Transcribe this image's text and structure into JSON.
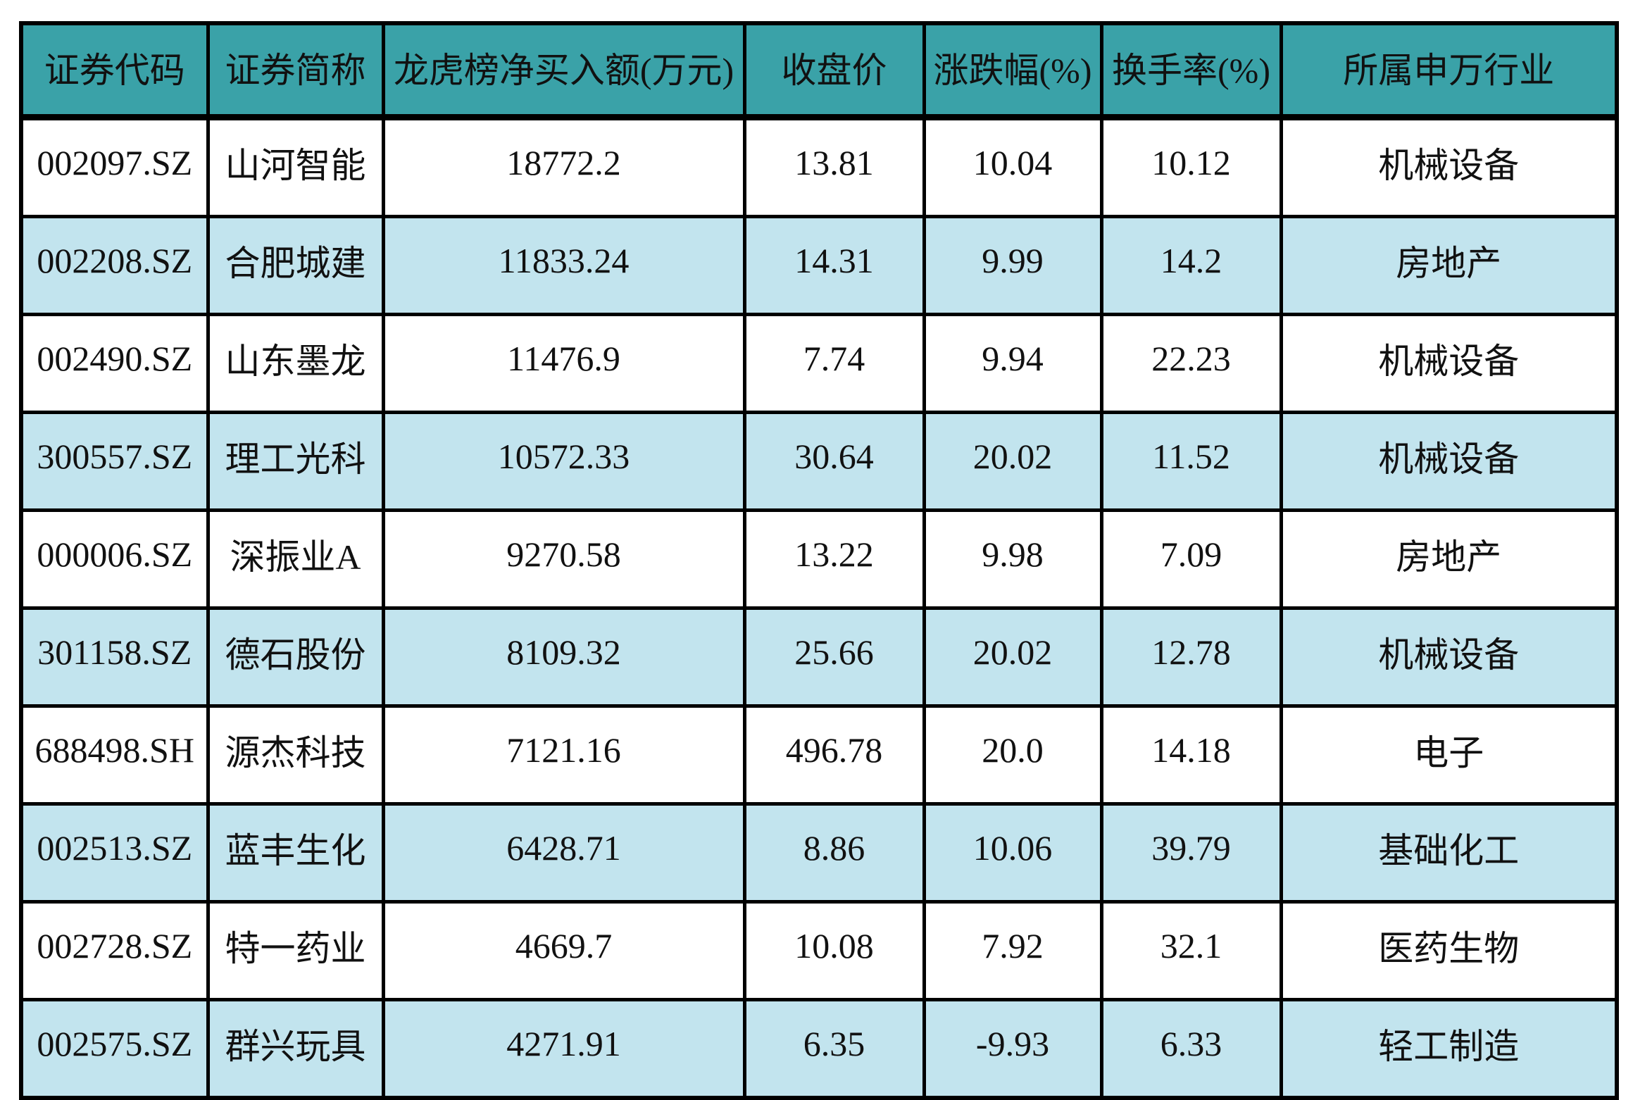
{
  "table": {
    "columns": [
      {
        "label": "证券代码",
        "field": "code"
      },
      {
        "label": "证券简称",
        "field": "name"
      },
      {
        "label": "龙虎榜净买入额(万元)",
        "field": "net_buy"
      },
      {
        "label": "收盘价",
        "field": "close"
      },
      {
        "label": "涨跌幅(%)",
        "field": "change_pct"
      },
      {
        "label": "换手率(%)",
        "field": "turnover_pct"
      },
      {
        "label": "所属申万行业",
        "field": "industry"
      }
    ],
    "rows": [
      {
        "code": "002097.SZ",
        "name": "山河智能",
        "net_buy": "18772.2",
        "close": "13.81",
        "change_pct": "10.04",
        "turnover_pct": "10.12",
        "industry": "机械设备"
      },
      {
        "code": "002208.SZ",
        "name": "合肥城建",
        "net_buy": "11833.24",
        "close": "14.31",
        "change_pct": "9.99",
        "turnover_pct": "14.2",
        "industry": "房地产"
      },
      {
        "code": "002490.SZ",
        "name": "山东墨龙",
        "net_buy": "11476.9",
        "close": "7.74",
        "change_pct": "9.94",
        "turnover_pct": "22.23",
        "industry": "机械设备"
      },
      {
        "code": "300557.SZ",
        "name": "理工光科",
        "net_buy": "10572.33",
        "close": "30.64",
        "change_pct": "20.02",
        "turnover_pct": "11.52",
        "industry": "机械设备"
      },
      {
        "code": "000006.SZ",
        "name": "深振业A",
        "net_buy": "9270.58",
        "close": "13.22",
        "change_pct": "9.98",
        "turnover_pct": "7.09",
        "industry": "房地产"
      },
      {
        "code": "301158.SZ",
        "name": "德石股份",
        "net_buy": "8109.32",
        "close": "25.66",
        "change_pct": "20.02",
        "turnover_pct": "12.78",
        "industry": "机械设备"
      },
      {
        "code": "688498.SH",
        "name": "源杰科技",
        "net_buy": "7121.16",
        "close": "496.78",
        "change_pct": "20.0",
        "turnover_pct": "14.18",
        "industry": "电子"
      },
      {
        "code": "002513.SZ",
        "name": "蓝丰生化",
        "net_buy": "6428.71",
        "close": "8.86",
        "change_pct": "10.06",
        "turnover_pct": "39.79",
        "industry": "基础化工"
      },
      {
        "code": "002728.SZ",
        "name": "特一药业",
        "net_buy": "4669.7",
        "close": "10.08",
        "change_pct": "7.92",
        "turnover_pct": "32.1",
        "industry": "医药生物"
      },
      {
        "code": "002575.SZ",
        "name": "群兴玩具",
        "net_buy": "4271.91",
        "close": "6.35",
        "change_pct": "-9.93",
        "turnover_pct": "6.33",
        "industry": "轻工制造"
      }
    ],
    "colors": {
      "header_bg": "#3AA2A8",
      "row_bg": "#FFFFFF",
      "row_alt_bg": "#C2E4EE",
      "border": "#000000",
      "text": "#111111"
    }
  }
}
